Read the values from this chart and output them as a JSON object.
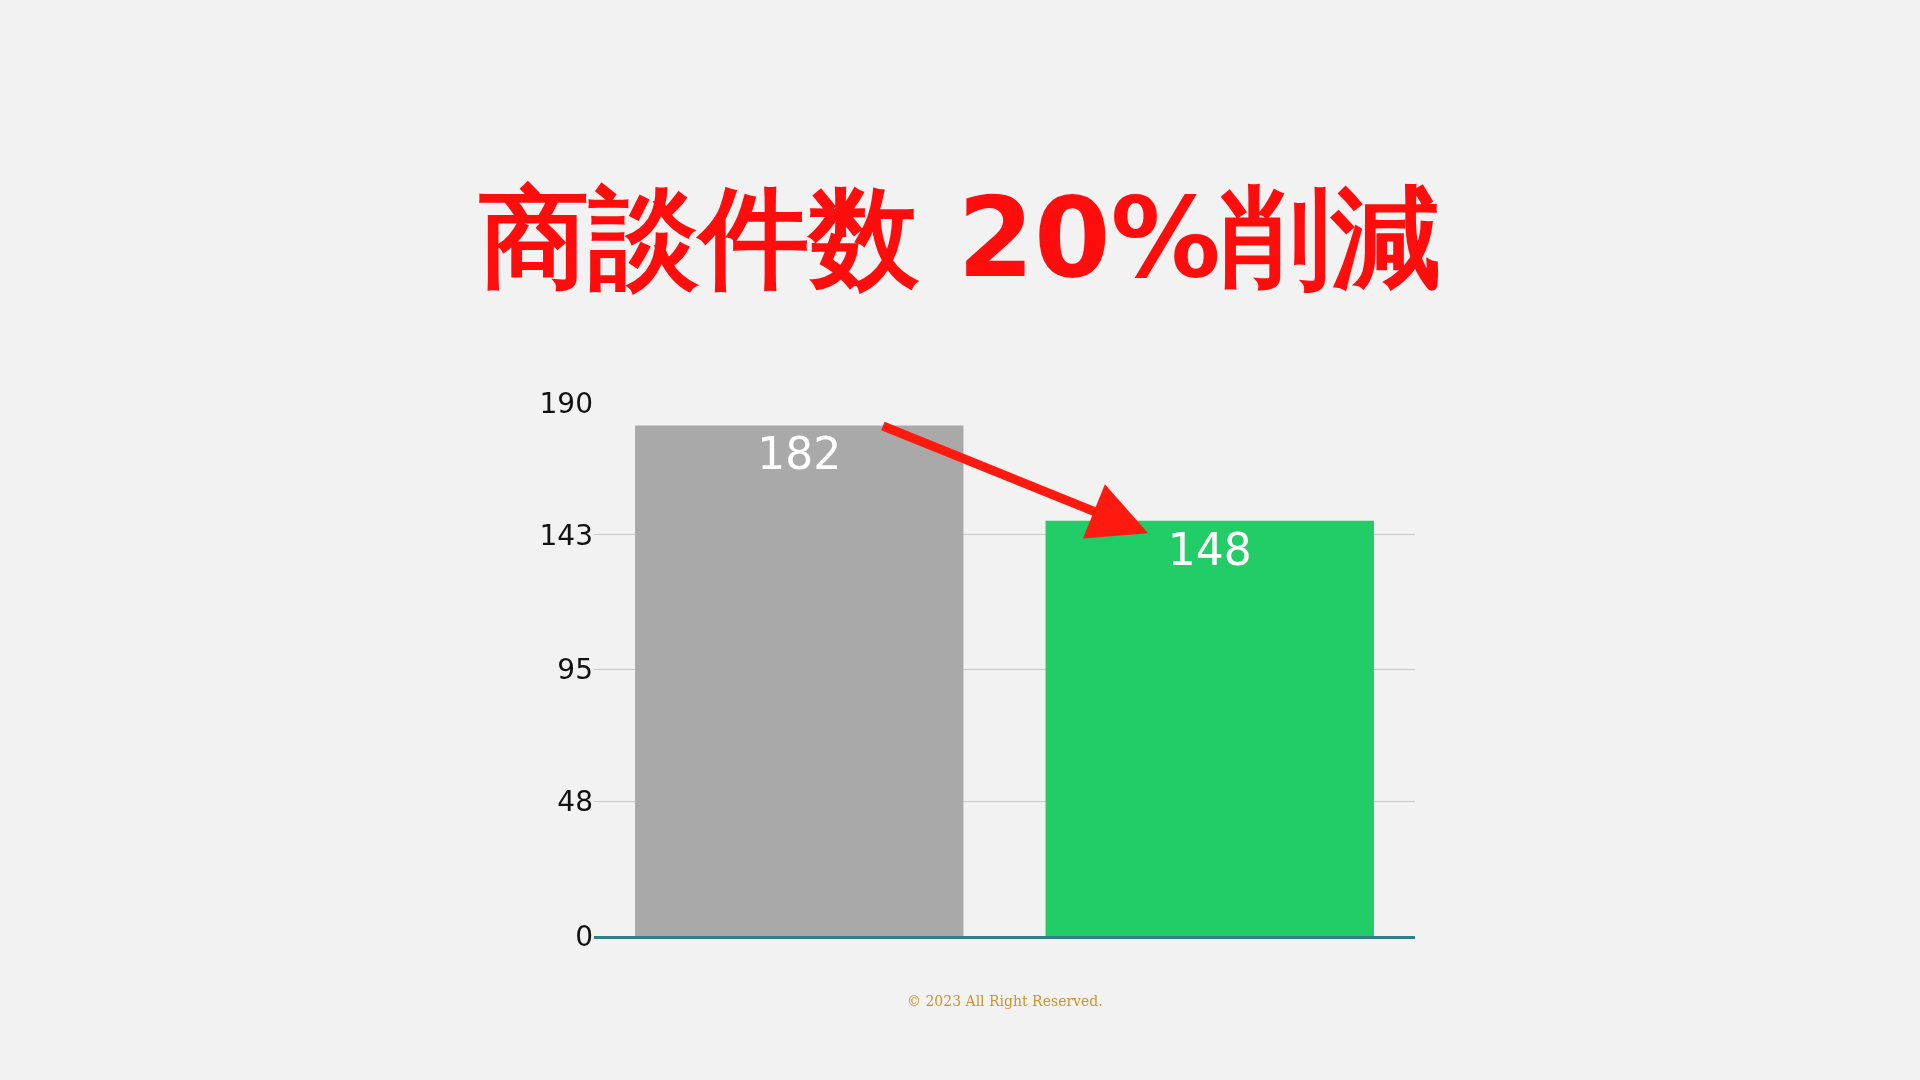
{
  "chart_data": {
    "type": "bar",
    "title": "商談件数 20%削減",
    "categories": [
      null,
      null
    ],
    "values": [
      182,
      148
    ],
    "colors": [
      "#a9a9a9",
      "#22cc66"
    ],
    "ylim": [
      0,
      190
    ],
    "yticks": [
      0,
      48,
      95,
      143,
      190
    ],
    "grid": "y",
    "data_labels": true,
    "annotations": [
      "© 2023 All Right Reserved."
    ]
  }
}
